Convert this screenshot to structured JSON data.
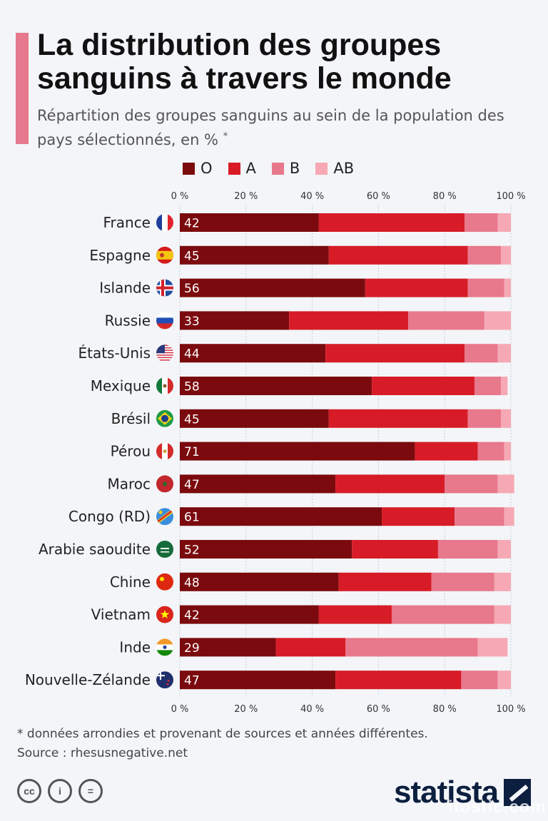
{
  "header": {
    "title": "La distribution des groupes sanguins à travers le monde",
    "subtitle": "Répartition des groupes sanguins au sein de la population des pays sélectionnés, en %",
    "subtitle_mark": "*"
  },
  "colors": {
    "O": "#7b0a0e",
    "A": "#d71c27",
    "B": "#e8788b",
    "AB": "#f6a9b4",
    "accent": "#e6798d"
  },
  "legend": [
    {
      "key": "O",
      "label": "O"
    },
    {
      "key": "A",
      "label": "A"
    },
    {
      "key": "B",
      "label": "B"
    },
    {
      "key": "AB",
      "label": "AB"
    }
  ],
  "chart_data": {
    "type": "bar",
    "orientation": "horizontal",
    "stacked": true,
    "xlim": [
      0,
      100
    ],
    "x_ticks": [
      "0 %",
      "20 %",
      "40 %",
      "60 %",
      "80 %",
      "100 %"
    ],
    "x_tick_values": [
      0,
      20,
      40,
      60,
      80,
      100
    ],
    "categories": [
      "France",
      "Espagne",
      "Islande",
      "Russie",
      "États-Unis",
      "Mexique",
      "Brésil",
      "Pérou",
      "Maroc",
      "Congo (RD)",
      "Arabie saoudite",
      "Chine",
      "Vietnam",
      "Inde",
      "Nouvelle-Zélande"
    ],
    "flags": [
      "flag-france-icon",
      "flag-spain-icon",
      "flag-iceland-icon",
      "flag-russia-icon",
      "flag-usa-icon",
      "flag-mexico-icon",
      "flag-brazil-icon",
      "flag-peru-icon",
      "flag-morocco-icon",
      "flag-drc-icon",
      "flag-saudi-arabia-icon",
      "flag-china-icon",
      "flag-vietnam-icon",
      "flag-india-icon",
      "flag-new-zealand-icon"
    ],
    "series": [
      {
        "name": "O",
        "values": [
          42,
          45,
          56,
          33,
          44,
          58,
          45,
          71,
          47,
          61,
          52,
          48,
          42,
          29,
          47
        ]
      },
      {
        "name": "A",
        "values": [
          44,
          42,
          31,
          36,
          42,
          31,
          42,
          19,
          33,
          22,
          26,
          28,
          22,
          21,
          38
        ]
      },
      {
        "name": "B",
        "values": [
          10,
          10,
          11,
          23,
          10,
          8,
          10,
          8,
          16,
          15,
          18,
          19,
          31,
          40,
          11
        ]
      },
      {
        "name": "AB",
        "values": [
          4,
          3,
          2,
          8,
          4,
          2,
          3,
          2,
          5,
          3,
          4,
          5,
          5,
          9,
          4
        ]
      }
    ],
    "data_labels_series": "O",
    "grid": true,
    "legend_position": "top"
  },
  "footer": {
    "note": "* données arrondies et provenant de sources et années différentes.",
    "source": "Source : rhesusnegative.net",
    "license_icons": [
      "cc",
      "i",
      "="
    ],
    "brand": "statista",
    "watermark": "itostic.com"
  }
}
